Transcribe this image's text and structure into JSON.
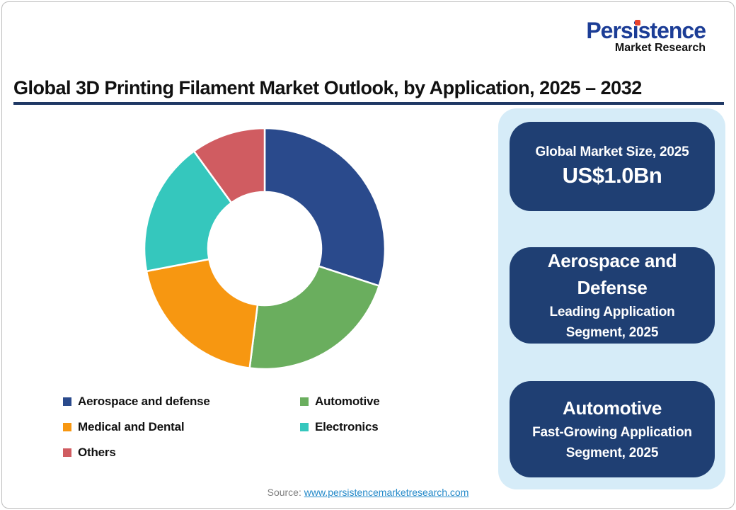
{
  "logo": {
    "brand": "Persistence",
    "sub": "Market Research"
  },
  "title": "Global 3D Printing Filament Market Outlook, by Application, 2025 – 2032",
  "chart_data": {
    "type": "pie",
    "subtype": "donut",
    "title": "Global 3D Printing Filament Market Outlook, by Application, 2025 – 2032",
    "categories": [
      "Aerospace and defense",
      "Automotive",
      "Medical and Dental",
      "Electronics",
      "Others"
    ],
    "values": [
      30,
      22,
      20,
      18,
      10
    ],
    "values_unit": "% share (estimated from arc angles, no labels shown)",
    "colors": [
      "#2a4a8c",
      "#6aae5e",
      "#f79711",
      "#35c7bd",
      "#d05c61"
    ],
    "start_angle_deg": 0,
    "direction": "clockwise",
    "inner_radius_ratio": 0.47,
    "legend_position": "below"
  },
  "panel": {
    "cards": [
      {
        "line1": "Global Market Size, 2025",
        "line2": "US$1.0Bn"
      },
      {
        "heading": "Aerospace and Defense",
        "sub": "Leading Application Segment, 2025"
      },
      {
        "heading": "Automotive",
        "sub": "Fast-Growing Application Segment, 2025"
      }
    ]
  },
  "footer": {
    "source_label": "Source:",
    "source_link": "www.persistencemarketresearch.com"
  },
  "colors": {
    "logo_brand": "#1c3d96",
    "logo_dot": "#e8432d",
    "title_rule": "#1f3864",
    "panel_bg": "#d6ecf8",
    "card_bg": "#1f3f73",
    "link": "#2389c9"
  }
}
